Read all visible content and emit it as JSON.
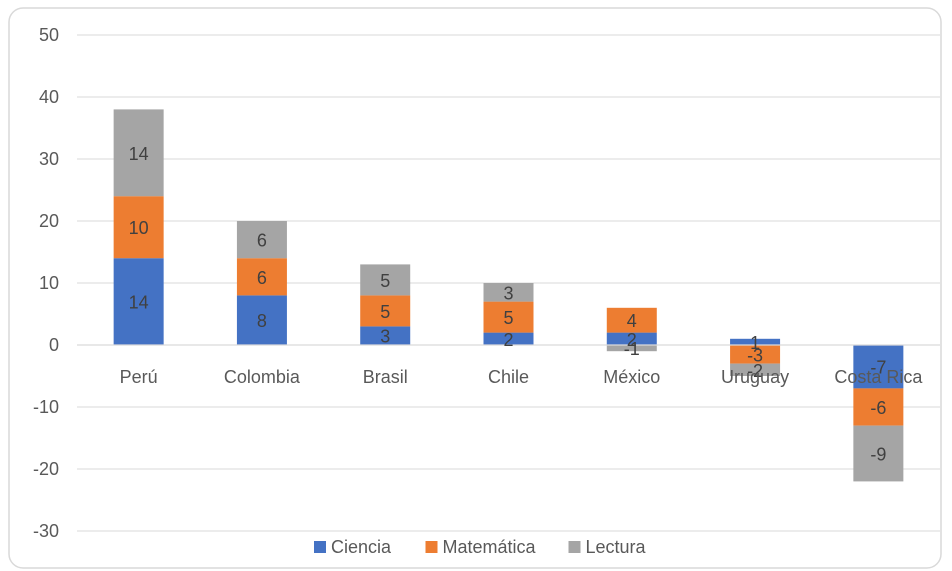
{
  "chart_data": {
    "type": "bar",
    "stacked": true,
    "categories": [
      "Perú",
      "Colombia",
      "Brasil",
      "Chile",
      "México",
      "Uruguay",
      "Costa Rica"
    ],
    "series": [
      {
        "name": "Ciencia",
        "color": "#4472C4",
        "values": [
          14,
          8,
          3,
          2,
          2,
          1,
          -7
        ]
      },
      {
        "name": "Matemática",
        "color": "#ED7D31",
        "values": [
          10,
          6,
          5,
          5,
          4,
          -3,
          -6
        ]
      },
      {
        "name": "Lectura",
        "color": "#A5A5A5",
        "values": [
          14,
          6,
          5,
          3,
          -1,
          -2,
          -9
        ]
      }
    ],
    "ylim": [
      -30,
      50
    ],
    "yticks": [
      -30,
      -20,
      -10,
      0,
      10,
      20,
      30,
      40,
      50
    ],
    "grid": true,
    "legend_position": "bottom"
  }
}
